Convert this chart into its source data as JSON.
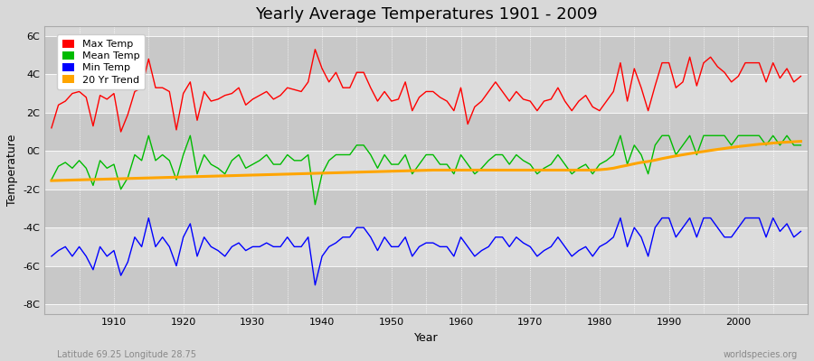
{
  "title": "Yearly Average Temperatures 1901 - 2009",
  "xlabel": "Year",
  "ylabel": "Temperature",
  "lat_label": "Latitude 69.25 Longitude 28.75",
  "source_label": "worldspecies.org",
  "legend_labels": [
    "Max Temp",
    "Mean Temp",
    "Min Temp",
    "20 Yr Trend"
  ],
  "colors": {
    "max": "#ff0000",
    "mean": "#00bb00",
    "min": "#0000ff",
    "trend": "#ffa500"
  },
  "ylim": [
    -8.5,
    6.5
  ],
  "yticks": [
    -8,
    -6,
    -4,
    -2,
    0,
    2,
    4,
    6
  ],
  "ytick_labels": [
    "-8C",
    "-6C",
    "-4C",
    "-2C",
    "0C",
    "2C",
    "4C",
    "6C"
  ],
  "start_year": 1901,
  "end_year": 2009,
  "fig_bg_color": "#d8d8d8",
  "band_light": "#dcdcdc",
  "band_dark": "#c8c8c8",
  "grid_color": "#ffffff",
  "max_temps": [
    1.2,
    2.4,
    2.6,
    3.0,
    3.1,
    2.8,
    1.3,
    2.9,
    2.7,
    3.0,
    1.0,
    1.9,
    3.1,
    3.3,
    4.8,
    3.3,
    3.3,
    3.1,
    1.1,
    3.0,
    3.6,
    1.6,
    3.1,
    2.6,
    2.7,
    2.9,
    3.0,
    3.3,
    2.4,
    2.7,
    2.9,
    3.1,
    2.7,
    2.9,
    3.3,
    3.2,
    3.1,
    3.6,
    5.3,
    4.3,
    3.6,
    4.1,
    3.3,
    3.3,
    4.1,
    4.1,
    3.3,
    2.6,
    3.1,
    2.6,
    2.7,
    3.6,
    2.1,
    2.8,
    3.1,
    3.1,
    2.8,
    2.6,
    2.1,
    3.3,
    1.4,
    2.3,
    2.6,
    3.1,
    3.6,
    3.1,
    2.6,
    3.1,
    2.7,
    2.6,
    2.1,
    2.6,
    2.7,
    3.3,
    2.6,
    2.1,
    2.6,
    2.9,
    2.3,
    2.1,
    2.6,
    3.1,
    4.6,
    2.6,
    4.3,
    3.3,
    2.1,
    3.4,
    4.6,
    4.6,
    3.3,
    3.6,
    4.9,
    3.4,
    4.6,
    4.9,
    4.4,
    4.1,
    3.6,
    3.9,
    4.6,
    4.6,
    4.6,
    3.6,
    4.6,
    3.8,
    4.3,
    3.6,
    3.9
  ],
  "mean_temps": [
    -1.5,
    -0.8,
    -0.6,
    -0.9,
    -0.5,
    -0.9,
    -1.8,
    -0.5,
    -0.9,
    -0.7,
    -2.0,
    -1.4,
    -0.2,
    -0.5,
    0.8,
    -0.5,
    -0.2,
    -0.5,
    -1.5,
    -0.2,
    0.8,
    -1.2,
    -0.2,
    -0.7,
    -0.9,
    -1.2,
    -0.5,
    -0.2,
    -0.9,
    -0.7,
    -0.5,
    -0.2,
    -0.7,
    -0.7,
    -0.2,
    -0.5,
    -0.5,
    -0.2,
    -2.8,
    -1.2,
    -0.5,
    -0.2,
    -0.2,
    -0.2,
    0.3,
    0.3,
    -0.2,
    -0.9,
    -0.2,
    -0.7,
    -0.7,
    -0.2,
    -1.2,
    -0.7,
    -0.2,
    -0.2,
    -0.7,
    -0.7,
    -1.2,
    -0.2,
    -0.7,
    -1.2,
    -0.9,
    -0.5,
    -0.2,
    -0.2,
    -0.7,
    -0.2,
    -0.5,
    -0.7,
    -1.2,
    -0.9,
    -0.7,
    -0.2,
    -0.7,
    -1.2,
    -0.9,
    -0.7,
    -1.2,
    -0.7,
    -0.5,
    -0.2,
    0.8,
    -0.7,
    0.3,
    -0.2,
    -1.2,
    0.3,
    0.8,
    0.8,
    -0.2,
    0.3,
    0.8,
    -0.2,
    0.8,
    0.8,
    0.8,
    0.8,
    0.3,
    0.8,
    0.8,
    0.8,
    0.8,
    0.3,
    0.8,
    0.3,
    0.8,
    0.3,
    0.3
  ],
  "min_temps": [
    -5.5,
    -5.2,
    -5.0,
    -5.5,
    -5.0,
    -5.5,
    -6.2,
    -5.0,
    -5.5,
    -5.2,
    -6.5,
    -5.8,
    -4.5,
    -5.0,
    -3.5,
    -5.0,
    -4.5,
    -5.0,
    -6.0,
    -4.5,
    -3.8,
    -5.5,
    -4.5,
    -5.0,
    -5.2,
    -5.5,
    -5.0,
    -4.8,
    -5.2,
    -5.0,
    -5.0,
    -4.8,
    -5.0,
    -5.0,
    -4.5,
    -5.0,
    -5.0,
    -4.5,
    -7.0,
    -5.5,
    -5.0,
    -4.8,
    -4.5,
    -4.5,
    -4.0,
    -4.0,
    -4.5,
    -5.2,
    -4.5,
    -5.0,
    -5.0,
    -4.5,
    -5.5,
    -5.0,
    -4.8,
    -4.8,
    -5.0,
    -5.0,
    -5.5,
    -4.5,
    -5.0,
    -5.5,
    -5.2,
    -5.0,
    -4.5,
    -4.5,
    -5.0,
    -4.5,
    -4.8,
    -5.0,
    -5.5,
    -5.2,
    -5.0,
    -4.5,
    -5.0,
    -5.5,
    -5.2,
    -5.0,
    -5.5,
    -5.0,
    -4.8,
    -4.5,
    -3.5,
    -5.0,
    -4.0,
    -4.5,
    -5.5,
    -4.0,
    -3.5,
    -3.5,
    -4.5,
    -4.0,
    -3.5,
    -4.5,
    -3.5,
    -3.5,
    -4.0,
    -4.5,
    -4.5,
    -4.0,
    -3.5,
    -3.5,
    -3.5,
    -4.5,
    -3.5,
    -4.2,
    -3.8,
    -4.5,
    -4.2
  ],
  "trend_temps": [
    -1.55,
    -1.54,
    -1.53,
    -1.52,
    -1.51,
    -1.5,
    -1.49,
    -1.48,
    -1.47,
    -1.46,
    -1.45,
    -1.44,
    -1.43,
    -1.42,
    -1.41,
    -1.4,
    -1.39,
    -1.38,
    -1.37,
    -1.36,
    -1.35,
    -1.34,
    -1.33,
    -1.32,
    -1.31,
    -1.3,
    -1.29,
    -1.28,
    -1.27,
    -1.26,
    -1.25,
    -1.24,
    -1.23,
    -1.22,
    -1.21,
    -1.2,
    -1.19,
    -1.18,
    -1.17,
    -1.16,
    -1.15,
    -1.14,
    -1.13,
    -1.12,
    -1.11,
    -1.1,
    -1.09,
    -1.08,
    -1.07,
    -1.06,
    -1.05,
    -1.04,
    -1.03,
    -1.02,
    -1.01,
    -1.0,
    -1.0,
    -1.0,
    -1.0,
    -1.0,
    -1.0,
    -1.0,
    -1.0,
    -1.0,
    -1.0,
    -1.0,
    -1.0,
    -1.0,
    -1.0,
    -1.0,
    -1.0,
    -1.0,
    -1.0,
    -1.0,
    -1.0,
    -1.0,
    -1.0,
    -1.0,
    -1.0,
    -0.98,
    -0.95,
    -0.9,
    -0.82,
    -0.75,
    -0.67,
    -0.6,
    -0.55,
    -0.48,
    -0.4,
    -0.33,
    -0.26,
    -0.2,
    -0.14,
    -0.08,
    -0.03,
    0.03,
    0.08,
    0.13,
    0.18,
    0.23,
    0.27,
    0.31,
    0.35,
    0.38,
    0.41,
    0.44,
    0.46,
    0.48,
    0.5
  ]
}
